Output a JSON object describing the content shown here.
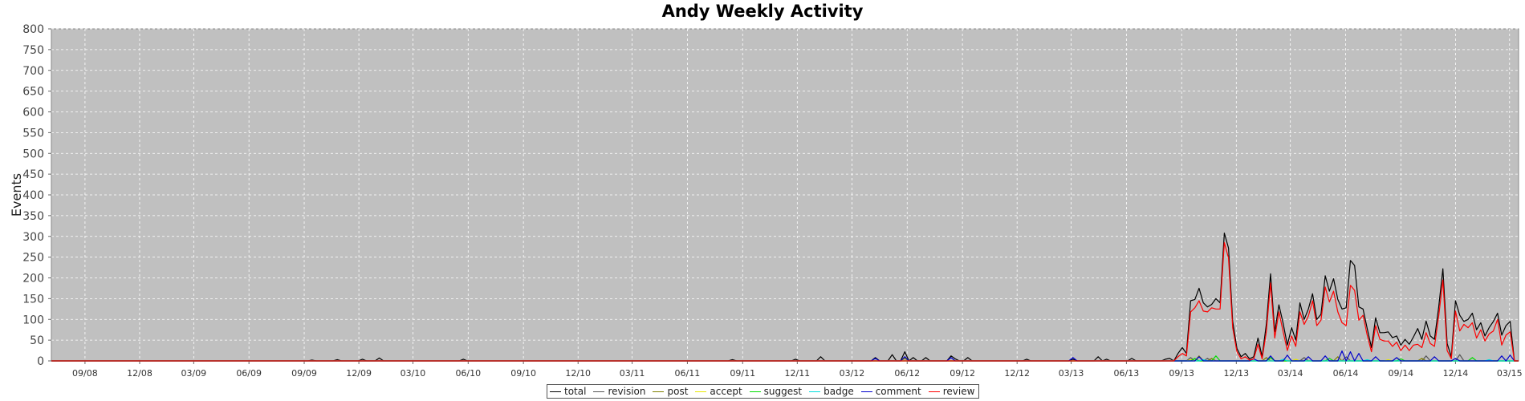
{
  "chart_data": {
    "type": "line",
    "title": "Andy Weekly Activity",
    "xlabel": "",
    "ylabel": "Events",
    "ylim": [
      0,
      800
    ],
    "yticks": [
      0,
      50,
      100,
      150,
      200,
      250,
      300,
      350,
      400,
      450,
      500,
      550,
      600,
      650,
      700,
      750,
      800
    ],
    "x_start": "2008-07-07",
    "x_end": "2015-03-16",
    "x_interval_weeks": 1,
    "xticks": [
      "09/08",
      "12/08",
      "03/09",
      "06/09",
      "09/09",
      "12/09",
      "03/10",
      "06/10",
      "09/10",
      "12/10",
      "03/11",
      "06/11",
      "09/11",
      "12/11",
      "03/12",
      "06/12",
      "09/12",
      "12/12",
      "03/13",
      "06/13",
      "09/13",
      "12/13",
      "03/14",
      "06/14",
      "09/14",
      "12/14",
      "03/15"
    ],
    "grid": true,
    "legend_position": "bottom",
    "plot_background": "#c0c0c0",
    "series": [
      {
        "name": "total",
        "color": "#000000",
        "points": [
          [
            "2009-09-14",
            2
          ],
          [
            "2009-10-26",
            3
          ],
          [
            "2009-12-07",
            4
          ],
          [
            "2010-01-04",
            7
          ],
          [
            "2010-05-24",
            4
          ],
          [
            "2011-08-15",
            3
          ],
          [
            "2011-11-28",
            4
          ],
          [
            "2012-01-09",
            10
          ],
          [
            "2012-04-09",
            8
          ],
          [
            "2012-05-07",
            15
          ],
          [
            "2012-05-28",
            22
          ],
          [
            "2012-06-11",
            8
          ],
          [
            "2012-07-02",
            8
          ],
          [
            "2012-08-13",
            12
          ],
          [
            "2012-08-20",
            5
          ],
          [
            "2012-09-10",
            8
          ],
          [
            "2012-12-17",
            4
          ],
          [
            "2013-03-04",
            4
          ],
          [
            "2013-04-15",
            10
          ],
          [
            "2013-04-29",
            4
          ],
          [
            "2013-06-10",
            6
          ],
          [
            "2013-08-05",
            4
          ],
          [
            "2013-08-12",
            6
          ],
          [
            "2013-08-26",
            18
          ],
          [
            "2013-09-02",
            32
          ],
          [
            "2013-09-09",
            18
          ],
          [
            "2013-09-16",
            145
          ],
          [
            "2013-09-23",
            148
          ],
          [
            "2013-09-30",
            175
          ],
          [
            "2013-10-07",
            140
          ],
          [
            "2013-10-14",
            130
          ],
          [
            "2013-10-21",
            136
          ],
          [
            "2013-10-28",
            150
          ],
          [
            "2013-11-04",
            140
          ],
          [
            "2013-11-11",
            308
          ],
          [
            "2013-11-18",
            272
          ],
          [
            "2013-11-25",
            95
          ],
          [
            "2013-12-02",
            30
          ],
          [
            "2013-12-09",
            10
          ],
          [
            "2013-12-16",
            18
          ],
          [
            "2013-12-23",
            5
          ],
          [
            "2013-12-30",
            10
          ],
          [
            "2014-01-06",
            55
          ],
          [
            "2014-01-13",
            10
          ],
          [
            "2014-01-20",
            88
          ],
          [
            "2014-01-27",
            210
          ],
          [
            "2014-02-03",
            70
          ],
          [
            "2014-02-10",
            135
          ],
          [
            "2014-02-17",
            90
          ],
          [
            "2014-02-24",
            38
          ],
          [
            "2014-03-03",
            80
          ],
          [
            "2014-03-10",
            50
          ],
          [
            "2014-03-17",
            140
          ],
          [
            "2014-03-24",
            100
          ],
          [
            "2014-03-31",
            125
          ],
          [
            "2014-04-07",
            162
          ],
          [
            "2014-04-14",
            100
          ],
          [
            "2014-04-21",
            112
          ],
          [
            "2014-04-28",
            205
          ],
          [
            "2014-05-05",
            168
          ],
          [
            "2014-05-12",
            198
          ],
          [
            "2014-05-19",
            148
          ],
          [
            "2014-05-26",
            125
          ],
          [
            "2014-06-02",
            128
          ],
          [
            "2014-06-09",
            242
          ],
          [
            "2014-06-16",
            230
          ],
          [
            "2014-06-23",
            130
          ],
          [
            "2014-06-30",
            125
          ],
          [
            "2014-07-07",
            78
          ],
          [
            "2014-07-14",
            32
          ],
          [
            "2014-07-21",
            104
          ],
          [
            "2014-07-28",
            68
          ],
          [
            "2014-08-04",
            68
          ],
          [
            "2014-08-11",
            70
          ],
          [
            "2014-08-18",
            56
          ],
          [
            "2014-08-25",
            60
          ],
          [
            "2014-09-01",
            38
          ],
          [
            "2014-09-08",
            52
          ],
          [
            "2014-09-15",
            40
          ],
          [
            "2014-09-22",
            58
          ],
          [
            "2014-09-29",
            78
          ],
          [
            "2014-10-06",
            52
          ],
          [
            "2014-10-13",
            96
          ],
          [
            "2014-10-20",
            60
          ],
          [
            "2014-10-27",
            52
          ],
          [
            "2014-11-03",
            130
          ],
          [
            "2014-11-10",
            222
          ],
          [
            "2014-11-17",
            42
          ],
          [
            "2014-11-24",
            10
          ],
          [
            "2014-12-01",
            145
          ],
          [
            "2014-12-08",
            110
          ],
          [
            "2014-12-15",
            95
          ],
          [
            "2014-12-22",
            100
          ],
          [
            "2014-12-29",
            115
          ],
          [
            "2015-01-05",
            75
          ],
          [
            "2015-01-12",
            92
          ],
          [
            "2015-01-19",
            60
          ],
          [
            "2015-01-26",
            80
          ],
          [
            "2015-02-02",
            95
          ],
          [
            "2015-02-09",
            115
          ],
          [
            "2015-02-16",
            62
          ],
          [
            "2015-02-23",
            85
          ],
          [
            "2015-03-02",
            95
          ]
        ]
      },
      {
        "name": "revision",
        "color": "#555555",
        "points": [
          [
            "2012-05-28",
            10
          ],
          [
            "2013-09-16",
            8
          ],
          [
            "2013-10-14",
            6
          ],
          [
            "2014-03-24",
            8
          ],
          [
            "2014-06-02",
            10
          ],
          [
            "2014-10-13",
            12
          ],
          [
            "2014-12-08",
            15
          ]
        ]
      },
      {
        "name": "post",
        "color": "#808000",
        "points": [
          [
            "2012-05-28",
            6
          ],
          [
            "2013-09-30",
            12
          ],
          [
            "2013-10-21",
            6
          ],
          [
            "2014-01-20",
            8
          ],
          [
            "2014-05-19",
            10
          ],
          [
            "2014-10-06",
            6
          ]
        ]
      },
      {
        "name": "accept",
        "color": "#e8e800",
        "points": [
          [
            "2013-09-16",
            3
          ],
          [
            "2014-03-10",
            4
          ],
          [
            "2014-08-11",
            3
          ]
        ]
      },
      {
        "name": "suggest",
        "color": "#00dd00",
        "points": [
          [
            "2013-09-23",
            6
          ],
          [
            "2013-10-28",
            12
          ],
          [
            "2014-01-27",
            8
          ],
          [
            "2014-05-05",
            6
          ],
          [
            "2014-09-01",
            5
          ],
          [
            "2014-12-29",
            8
          ]
        ]
      },
      {
        "name": "badge",
        "color": "#00dddd",
        "points": [
          [
            "2013-10-07",
            3
          ],
          [
            "2014-02-17",
            4
          ],
          [
            "2014-07-07",
            3
          ],
          [
            "2015-01-26",
            3
          ]
        ]
      },
      {
        "name": "comment",
        "color": "#0000cc",
        "points": [
          [
            "2012-04-09",
            6
          ],
          [
            "2012-05-28",
            10
          ],
          [
            "2012-08-13",
            8
          ],
          [
            "2013-03-04",
            8
          ],
          [
            "2013-09-30",
            10
          ],
          [
            "2013-12-30",
            5
          ],
          [
            "2014-01-27",
            12
          ],
          [
            "2014-02-24",
            14
          ],
          [
            "2014-03-31",
            10
          ],
          [
            "2014-04-28",
            12
          ],
          [
            "2014-05-26",
            24
          ],
          [
            "2014-06-09",
            22
          ],
          [
            "2014-06-23",
            18
          ],
          [
            "2014-07-21",
            10
          ],
          [
            "2014-08-25",
            8
          ],
          [
            "2014-10-27",
            10
          ],
          [
            "2014-12-01",
            6
          ],
          [
            "2015-02-16",
            12
          ],
          [
            "2015-03-02",
            14
          ]
        ]
      },
      {
        "name": "review",
        "color": "#ff0000",
        "points": [
          [
            "2013-08-26",
            10
          ],
          [
            "2013-09-02",
            18
          ],
          [
            "2013-09-09",
            12
          ],
          [
            "2013-09-16",
            118
          ],
          [
            "2013-09-23",
            128
          ],
          [
            "2013-09-30",
            145
          ],
          [
            "2013-10-07",
            120
          ],
          [
            "2013-10-14",
            118
          ],
          [
            "2013-10-21",
            128
          ],
          [
            "2013-10-28",
            125
          ],
          [
            "2013-11-04",
            125
          ],
          [
            "2013-11-11",
            285
          ],
          [
            "2013-11-18",
            248
          ],
          [
            "2013-11-25",
            80
          ],
          [
            "2013-12-02",
            22
          ],
          [
            "2013-12-09",
            5
          ],
          [
            "2013-12-16",
            10
          ],
          [
            "2013-12-23",
            2
          ],
          [
            "2013-12-30",
            5
          ],
          [
            "2014-01-06",
            40
          ],
          [
            "2014-01-13",
            5
          ],
          [
            "2014-01-20",
            70
          ],
          [
            "2014-01-27",
            188
          ],
          [
            "2014-02-03",
            55
          ],
          [
            "2014-02-10",
            118
          ],
          [
            "2014-02-17",
            70
          ],
          [
            "2014-02-24",
            25
          ],
          [
            "2014-03-03",
            60
          ],
          [
            "2014-03-10",
            35
          ],
          [
            "2014-03-17",
            118
          ],
          [
            "2014-03-24",
            88
          ],
          [
            "2014-03-31",
            108
          ],
          [
            "2014-04-07",
            145
          ],
          [
            "2014-04-14",
            85
          ],
          [
            "2014-04-21",
            98
          ],
          [
            "2014-04-28",
            178
          ],
          [
            "2014-05-05",
            142
          ],
          [
            "2014-05-12",
            168
          ],
          [
            "2014-05-19",
            118
          ],
          [
            "2014-05-26",
            92
          ],
          [
            "2014-06-02",
            85
          ],
          [
            "2014-06-09",
            182
          ],
          [
            "2014-06-16",
            170
          ],
          [
            "2014-06-23",
            98
          ],
          [
            "2014-06-30",
            110
          ],
          [
            "2014-07-07",
            62
          ],
          [
            "2014-07-14",
            22
          ],
          [
            "2014-07-21",
            85
          ],
          [
            "2014-07-28",
            52
          ],
          [
            "2014-08-04",
            48
          ],
          [
            "2014-08-11",
            48
          ],
          [
            "2014-08-18",
            35
          ],
          [
            "2014-08-25",
            45
          ],
          [
            "2014-09-01",
            25
          ],
          [
            "2014-09-08",
            38
          ],
          [
            "2014-09-15",
            25
          ],
          [
            "2014-09-22",
            38
          ],
          [
            "2014-09-29",
            40
          ],
          [
            "2014-10-06",
            32
          ],
          [
            "2014-10-13",
            68
          ],
          [
            "2014-10-20",
            42
          ],
          [
            "2014-10-27",
            35
          ],
          [
            "2014-11-03",
            108
          ],
          [
            "2014-11-10",
            195
          ],
          [
            "2014-11-17",
            25
          ],
          [
            "2014-11-24",
            5
          ],
          [
            "2014-12-01",
            120
          ],
          [
            "2014-12-08",
            72
          ],
          [
            "2014-12-15",
            88
          ],
          [
            "2014-12-22",
            80
          ],
          [
            "2014-12-29",
            92
          ],
          [
            "2015-01-05",
            55
          ],
          [
            "2015-01-12",
            75
          ],
          [
            "2015-01-19",
            48
          ],
          [
            "2015-01-26",
            65
          ],
          [
            "2015-02-02",
            72
          ],
          [
            "2015-02-09",
            100
          ],
          [
            "2015-02-16",
            38
          ],
          [
            "2015-02-23",
            62
          ],
          [
            "2015-03-02",
            70
          ]
        ]
      }
    ]
  }
}
